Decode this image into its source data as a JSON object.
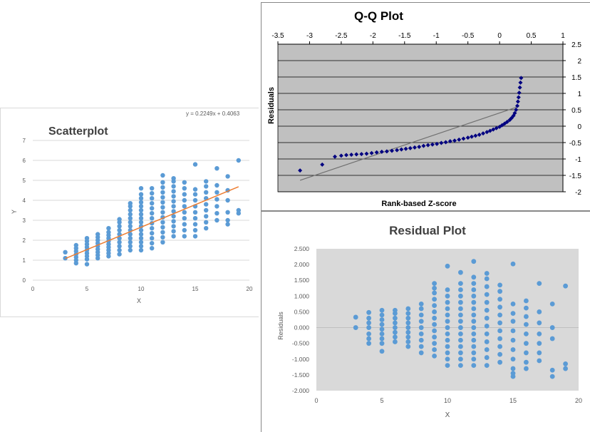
{
  "chart_data": [
    {
      "id": "scatter",
      "type": "scatter",
      "title": "Scatterplot",
      "xlabel": "X",
      "ylabel": "Y",
      "xlim": [
        0,
        20
      ],
      "ylim": [
        0,
        7
      ],
      "x_ticks": [
        "0",
        "5",
        "10",
        "15",
        "20"
      ],
      "y_ticks": [
        "0",
        "1",
        "2",
        "3",
        "4",
        "5",
        "6",
        "7"
      ],
      "grid": "horizontal",
      "colors": {
        "points": "#5B9BD5",
        "trend": "#ED7D31",
        "grid": "#d9d9d9",
        "title": "#404040"
      },
      "trendline": {
        "equation": "y = 0.2249x + 0.4063",
        "slope": 0.2249,
        "intercept": 0.4063,
        "x_range": [
          3,
          19
        ]
      },
      "points_by_x": [
        {
          "x": 3,
          "y": [
            1.1,
            1.4
          ]
        },
        {
          "x": 4,
          "y": [
            0.85,
            1.0,
            1.15,
            1.3,
            1.45,
            1.6,
            1.75
          ]
        },
        {
          "x": 5,
          "y": [
            0.8,
            1.05,
            1.2,
            1.35,
            1.5,
            1.65,
            1.8,
            1.95,
            2.1
          ]
        },
        {
          "x": 6,
          "y": [
            1.1,
            1.25,
            1.4,
            1.55,
            1.7,
            1.85,
            2.0,
            2.15,
            2.3
          ]
        },
        {
          "x": 7,
          "y": [
            1.2,
            1.35,
            1.5,
            1.65,
            1.8,
            1.95,
            2.1,
            2.25,
            2.4,
            2.6
          ]
        },
        {
          "x": 8,
          "y": [
            1.3,
            1.5,
            1.7,
            1.9,
            2.1,
            2.3,
            2.5,
            2.7,
            2.9,
            3.05
          ]
        },
        {
          "x": 9,
          "y": [
            1.5,
            1.7,
            1.9,
            2.1,
            2.3,
            2.5,
            2.7,
            2.9,
            3.1,
            3.3,
            3.5,
            3.7,
            3.85
          ]
        },
        {
          "x": 10,
          "y": [
            1.5,
            1.7,
            1.9,
            2.1,
            2.3,
            2.5,
            2.7,
            2.9,
            3.1,
            3.3,
            3.5,
            3.7,
            3.9,
            4.1,
            4.3,
            4.6
          ]
        },
        {
          "x": 11,
          "y": [
            1.6,
            1.85,
            2.1,
            2.35,
            2.6,
            2.85,
            3.1,
            3.35,
            3.6,
            3.85,
            4.1,
            4.35,
            4.6
          ]
        },
        {
          "x": 12,
          "y": [
            1.9,
            2.15,
            2.4,
            2.65,
            2.9,
            3.15,
            3.4,
            3.65,
            3.9,
            4.15,
            4.4,
            4.65,
            4.9,
            5.25
          ]
        },
        {
          "x": 13,
          "y": [
            2.2,
            2.45,
            2.7,
            2.95,
            3.2,
            3.45,
            3.7,
            3.95,
            4.2,
            4.45,
            4.7,
            4.95,
            5.1
          ]
        },
        {
          "x": 14,
          "y": [
            2.2,
            2.5,
            2.8,
            3.1,
            3.4,
            3.7,
            4.0,
            4.3,
            4.6,
            4.9
          ]
        },
        {
          "x": 15,
          "y": [
            2.2,
            2.5,
            2.8,
            3.1,
            3.4,
            3.7,
            4.0,
            4.3,
            4.55,
            5.8
          ]
        },
        {
          "x": 16,
          "y": [
            2.6,
            2.9,
            3.2,
            3.5,
            3.8,
            4.1,
            4.4,
            4.7,
            4.95
          ]
        },
        {
          "x": 17,
          "y": [
            3.0,
            3.35,
            3.7,
            4.05,
            4.4,
            4.75,
            5.6
          ]
        },
        {
          "x": 18,
          "y": [
            2.8,
            3.0,
            3.4,
            4.0,
            4.5,
            5.2
          ]
        },
        {
          "x": 19,
          "y": [
            3.35,
            3.5,
            6.0
          ]
        }
      ]
    },
    {
      "id": "qq",
      "type": "scatter",
      "title": "Q-Q Plot",
      "xlabel": "Rank-based Z-score",
      "ylabel": "Residuals",
      "xlim": [
        -3.5,
        1
      ],
      "ylim": [
        -2,
        2.5
      ],
      "x_ticks": [
        "-3.5",
        "-3",
        "-2.5",
        "-2",
        "-1.5",
        "-1",
        "-0.5",
        "0",
        "0.5",
        "1"
      ],
      "y_ticks": [
        "2.5",
        "2",
        "1.5",
        "1",
        "0.5",
        "0",
        "-0.5",
        "-1",
        "-1.5",
        "-2"
      ],
      "x_axis_position": "top",
      "y_axis_position": "right",
      "grid": "horizontal",
      "colors": {
        "plot_bg": "#C0C0C0",
        "points": "#000080",
        "line": "#707070",
        "grid": "#000000"
      },
      "reference_line": {
        "x": [
          -3.15,
          0.3
        ],
        "y": [
          -1.65,
          0.6
        ]
      },
      "points": [
        [
          -3.15,
          -1.35
        ],
        [
          -2.8,
          -1.17
        ],
        [
          -2.6,
          -0.93
        ],
        [
          -2.5,
          -0.9
        ],
        [
          -2.42,
          -0.88
        ],
        [
          -2.34,
          -0.87
        ],
        [
          -2.26,
          -0.86
        ],
        [
          -2.18,
          -0.85
        ],
        [
          -2.1,
          -0.84
        ],
        [
          -2.02,
          -0.82
        ],
        [
          -1.94,
          -0.8
        ],
        [
          -1.86,
          -0.78
        ],
        [
          -1.78,
          -0.77
        ],
        [
          -1.7,
          -0.75
        ],
        [
          -1.62,
          -0.73
        ],
        [
          -1.55,
          -0.71
        ],
        [
          -1.48,
          -0.69
        ],
        [
          -1.41,
          -0.67
        ],
        [
          -1.34,
          -0.65
        ],
        [
          -1.27,
          -0.63
        ],
        [
          -1.2,
          -0.6
        ],
        [
          -1.13,
          -0.58
        ],
        [
          -1.06,
          -0.56
        ],
        [
          -0.99,
          -0.54
        ],
        [
          -0.92,
          -0.51
        ],
        [
          -0.85,
          -0.49
        ],
        [
          -0.78,
          -0.46
        ],
        [
          -0.71,
          -0.44
        ],
        [
          -0.64,
          -0.41
        ],
        [
          -0.57,
          -0.38
        ],
        [
          -0.5,
          -0.35
        ],
        [
          -0.44,
          -0.32
        ],
        [
          -0.38,
          -0.29
        ],
        [
          -0.32,
          -0.26
        ],
        [
          -0.26,
          -0.22
        ],
        [
          -0.2,
          -0.18
        ],
        [
          -0.15,
          -0.14
        ],
        [
          -0.1,
          -0.1
        ],
        [
          -0.05,
          -0.06
        ],
        [
          0.0,
          -0.02
        ],
        [
          0.04,
          0.03
        ],
        [
          0.08,
          0.08
        ],
        [
          0.12,
          0.13
        ],
        [
          0.16,
          0.19
        ],
        [
          0.19,
          0.25
        ],
        [
          0.22,
          0.32
        ],
        [
          0.24,
          0.4
        ],
        [
          0.26,
          0.5
        ],
        [
          0.28,
          0.62
        ],
        [
          0.29,
          0.75
        ],
        [
          0.3,
          0.88
        ],
        [
          0.31,
          1.02
        ],
        [
          0.32,
          1.18
        ],
        [
          0.33,
          1.33
        ],
        [
          0.34,
          1.47
        ]
      ]
    },
    {
      "id": "residual",
      "type": "scatter",
      "title": "Residual Plot",
      "xlabel": "X",
      "ylabel": "Residuals",
      "xlim": [
        0,
        20
      ],
      "ylim": [
        -2.0,
        2.5
      ],
      "x_ticks": [
        "0",
        "5",
        "10",
        "15",
        "20"
      ],
      "y_ticks": [
        "2.500",
        "2.000",
        "1.500",
        "1.000",
        "0.500",
        "0.000",
        "-0.500",
        "-1.000",
        "-1.500",
        "-2.000"
      ],
      "grid": "none",
      "colors": {
        "plot_bg": "#D9D9D9",
        "points": "#5B9BD5",
        "title": "#404040",
        "zero_line": "#BFBFBF"
      },
      "points_by_x": [
        {
          "x": 3,
          "y": [
            0.0,
            0.33
          ]
        },
        {
          "x": 4,
          "y": [
            -0.5,
            -0.35,
            -0.2,
            0.0,
            0.15,
            0.3,
            0.48
          ]
        },
        {
          "x": 5,
          "y": [
            -0.75,
            -0.5,
            -0.35,
            -0.2,
            -0.05,
            0.1,
            0.25,
            0.4,
            0.55
          ]
        },
        {
          "x": 6,
          "y": [
            -0.45,
            -0.3,
            -0.15,
            0.0,
            0.15,
            0.3,
            0.45,
            0.55
          ]
        },
        {
          "x": 7,
          "y": [
            -0.6,
            -0.45,
            -0.3,
            -0.15,
            0.0,
            0.15,
            0.3,
            0.45,
            0.6
          ]
        },
        {
          "x": 8,
          "y": [
            -0.8,
            -0.6,
            -0.4,
            -0.2,
            0.0,
            0.2,
            0.4,
            0.6,
            0.75
          ]
        },
        {
          "x": 9,
          "y": [
            -0.9,
            -0.7,
            -0.5,
            -0.3,
            -0.1,
            0.1,
            0.3,
            0.5,
            0.7,
            0.9,
            1.1,
            1.25,
            1.4
          ]
        },
        {
          "x": 10,
          "y": [
            -1.2,
            -1.0,
            -0.8,
            -0.6,
            -0.4,
            -0.2,
            0.0,
            0.2,
            0.4,
            0.6,
            0.8,
            1.0,
            1.2,
            1.95
          ]
        },
        {
          "x": 11,
          "y": [
            -1.2,
            -1.0,
            -0.8,
            -0.6,
            -0.4,
            -0.2,
            0.0,
            0.2,
            0.4,
            0.6,
            0.8,
            1.0,
            1.2,
            1.4,
            1.75
          ]
        },
        {
          "x": 12,
          "y": [
            -1.2,
            -1.0,
            -0.8,
            -0.6,
            -0.4,
            -0.2,
            0.0,
            0.2,
            0.4,
            0.6,
            0.8,
            1.0,
            1.2,
            1.4,
            1.6,
            2.1
          ]
        },
        {
          "x": 13,
          "y": [
            -1.2,
            -0.95,
            -0.7,
            -0.45,
            -0.2,
            0.05,
            0.3,
            0.55,
            0.8,
            1.05,
            1.3,
            1.55,
            1.72
          ]
        },
        {
          "x": 14,
          "y": [
            -1.1,
            -0.85,
            -0.6,
            -0.35,
            -0.1,
            0.15,
            0.4,
            0.65,
            0.9,
            1.15,
            1.35
          ]
        },
        {
          "x": 15,
          "y": [
            -1.55,
            -1.45,
            -1.3,
            -1.0,
            -0.7,
            -0.4,
            -0.1,
            0.2,
            0.45,
            0.75,
            2.02
          ]
        },
        {
          "x": 16,
          "y": [
            -1.3,
            -1.1,
            -0.8,
            -0.5,
            -0.2,
            0.1,
            0.35,
            0.62,
            0.85
          ]
        },
        {
          "x": 17,
          "y": [
            -1.05,
            -0.8,
            -0.5,
            -0.2,
            0.15,
            0.5,
            1.4
          ]
        },
        {
          "x": 18,
          "y": [
            -1.55,
            -1.35,
            -0.35,
            0.0,
            0.75
          ]
        },
        {
          "x": 19,
          "y": [
            -1.3,
            -1.15,
            1.32
          ]
        }
      ]
    }
  ]
}
